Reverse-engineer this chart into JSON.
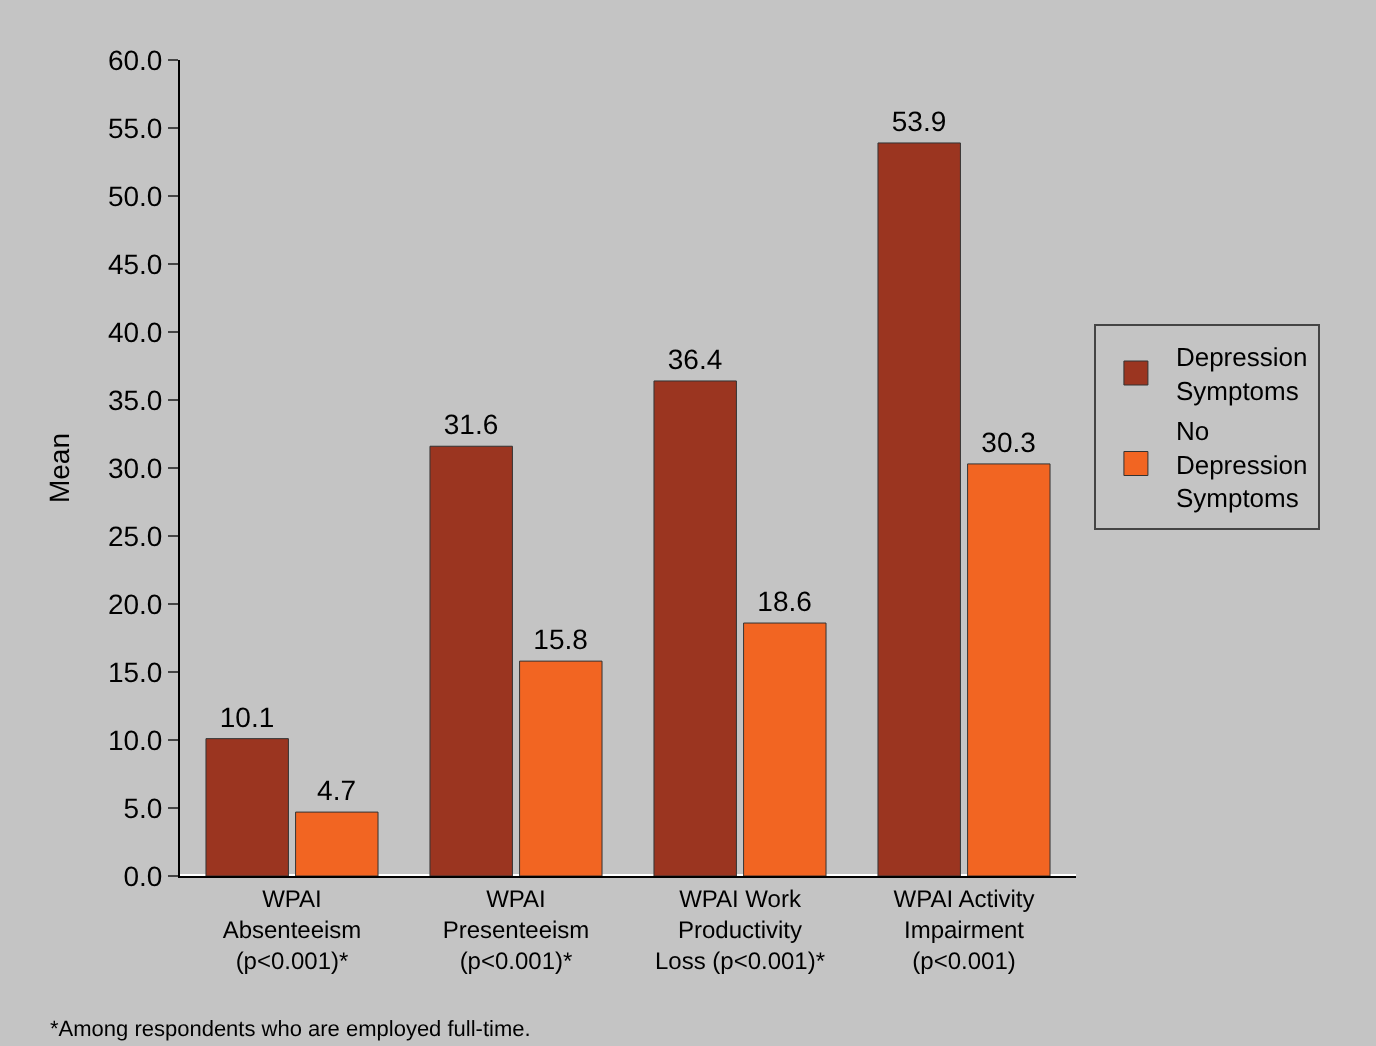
{
  "chart_data": {
    "type": "bar",
    "ylabel": "Mean",
    "categories": [
      "WPAI Absenteeism (p<0.001)*",
      "WPAI Presenteeism (p<0.001)*",
      "WPAI Work Productivity Loss (p<0.001)*",
      "WPAI Activity Impairment (p<0.001)"
    ],
    "series": [
      {
        "name": "Depression Symptoms",
        "color": "#9b3520",
        "values": [
          10.1,
          31.6,
          36.4,
          53.9
        ]
      },
      {
        "name": "No Depression Symptoms",
        "color": "#f26522",
        "values": [
          4.7,
          15.8,
          18.6,
          30.3
        ]
      }
    ],
    "ylim": [
      0,
      60
    ],
    "yticks": [
      {
        "value": 0,
        "label": "0.0"
      },
      {
        "value": 5,
        "label": "5.0"
      },
      {
        "value": 10,
        "label": "10.0"
      },
      {
        "value": 15,
        "label": "15.0"
      },
      {
        "value": 20,
        "label": "20.0"
      },
      {
        "value": 25,
        "label": "25.0"
      },
      {
        "value": 30,
        "label": "30.0"
      },
      {
        "value": 35,
        "label": "35.0"
      },
      {
        "value": 40,
        "label": "40.0"
      },
      {
        "value": 45,
        "label": "45.0"
      },
      {
        "value": 50,
        "label": "50.0"
      },
      {
        "value": 55,
        "label": "55.0"
      },
      {
        "value": 60,
        "label": "60.0"
      }
    ],
    "data_labels": true,
    "grid": false,
    "legend": "right",
    "annotations": [
      "*Among respondents who are employed full-time."
    ]
  }
}
